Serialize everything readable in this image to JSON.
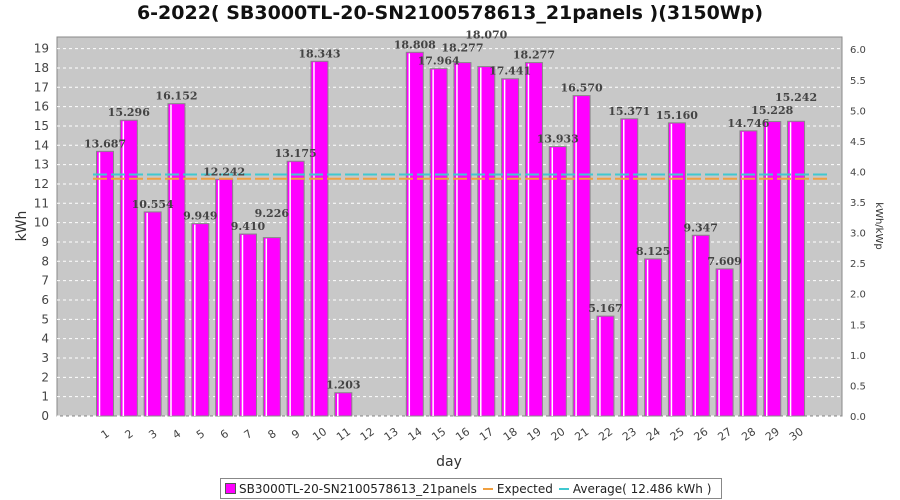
{
  "chart_data": {
    "type": "bar",
    "title": "6-2022( SB3000TL-20-SN2100578613_21panels )(3150Wp)",
    "xlabel": "day",
    "ylabel": "kWh",
    "y2label": "kWh/kWp",
    "ylim": [
      0,
      19.6
    ],
    "y2lim": [
      0,
      6.2
    ],
    "yticks": [
      0,
      1,
      2,
      3,
      4,
      5,
      6,
      7,
      8,
      9,
      10,
      11,
      12,
      13,
      14,
      15,
      16,
      17,
      18,
      19
    ],
    "y2ticks": [
      "0.0",
      "0.5",
      "1.0",
      "1.5",
      "2.0",
      "2.5",
      "3.0",
      "3.5",
      "4.0",
      "4.5",
      "5.0",
      "5.5",
      "6.0"
    ],
    "categories": [
      "1",
      "2",
      "3",
      "4",
      "5",
      "6",
      "7",
      "8",
      "9",
      "10",
      "11",
      "12",
      "13",
      "14",
      "15",
      "16",
      "17",
      "18",
      "19",
      "20",
      "21",
      "22",
      "23",
      "24",
      "25",
      "26",
      "27",
      "28",
      "29",
      "30"
    ],
    "series": [
      {
        "name": "SB3000TL-20-SN2100578613_21panels",
        "color": "#ff00ff",
        "values": [
          13.687,
          15.296,
          10.554,
          16.152,
          9.949,
          12.242,
          9.41,
          9.226,
          13.175,
          18.343,
          1.203,
          0,
          0,
          18.808,
          17.964,
          18.277,
          18.07,
          17.441,
          18.277,
          13.933,
          16.57,
          5.167,
          15.371,
          8.125,
          15.16,
          9.347,
          7.609,
          14.746,
          15.228,
          15.242
        ],
        "labels": [
          "13.687",
          "15.296",
          "10.554",
          "16.152",
          "9.949",
          "12.242",
          "9.410",
          "9.226",
          "13.175",
          "18.343",
          "1.203",
          "",
          "",
          "18.808",
          "17.964",
          "18.277",
          "18.070",
          "17.441",
          "18.277",
          "13.933",
          "16.570",
          "5.167",
          "15.371",
          "8.125",
          "15.160",
          "9.347",
          "7.609",
          "14.746",
          "15.228",
          "15.242"
        ]
      }
    ],
    "expected": {
      "name": "Expected",
      "value": 12.27,
      "color": "#f0a040"
    },
    "average": {
      "name": "Average( 12.486 kWh )",
      "value": 12.486,
      "color": "#40c8d0"
    }
  }
}
